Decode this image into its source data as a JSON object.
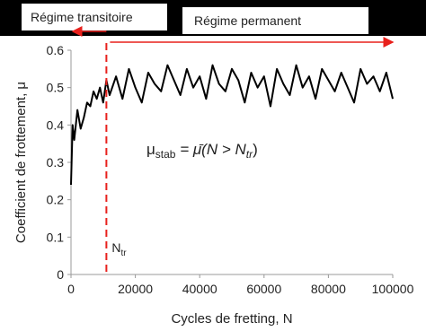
{
  "chart_data": {
    "type": "line",
    "x_label": "Cycles de fretting, N",
    "y_label": "Coefficient de frottement, μ",
    "regime_left": "Régime transitoire",
    "regime_right": "Régime permanent",
    "ntr_x": 11000,
    "ntr_label": {
      "main": "N",
      "sub": "tr"
    },
    "equation": {
      "mu": "μ",
      "mu_sub": "stab",
      "rest": " = μ̄(N > N",
      "rest_sub": "tr",
      "close": ")"
    },
    "x": [
      0,
      500,
      1000,
      2000,
      3000,
      4000,
      5000,
      6000,
      7000,
      8000,
      9000,
      10000,
      11000,
      12000,
      14000,
      16000,
      18000,
      20000,
      22000,
      24000,
      26000,
      28000,
      30000,
      32000,
      34000,
      36000,
      38000,
      40000,
      42000,
      44000,
      46000,
      48000,
      50000,
      52000,
      54000,
      56000,
      58000,
      60000,
      62000,
      64000,
      66000,
      68000,
      70000,
      72000,
      74000,
      76000,
      78000,
      80000,
      82000,
      84000,
      86000,
      88000,
      90000,
      92000,
      94000,
      96000,
      98000,
      100000
    ],
    "series": [
      {
        "color": "#000000",
        "values": [
          0.24,
          0.4,
          0.36,
          0.44,
          0.39,
          0.42,
          0.46,
          0.45,
          0.49,
          0.47,
          0.5,
          0.46,
          0.52,
          0.48,
          0.53,
          0.47,
          0.55,
          0.5,
          0.46,
          0.54,
          0.51,
          0.49,
          0.56,
          0.52,
          0.48,
          0.55,
          0.5,
          0.53,
          0.47,
          0.56,
          0.51,
          0.49,
          0.55,
          0.52,
          0.46,
          0.54,
          0.5,
          0.53,
          0.45,
          0.55,
          0.51,
          0.48,
          0.56,
          0.5,
          0.53,
          0.47,
          0.55,
          0.52,
          0.49,
          0.54,
          0.5,
          0.46,
          0.55,
          0.51,
          0.53,
          0.49,
          0.54,
          0.47
        ]
      }
    ],
    "xlim": [
      0,
      100000
    ],
    "ylim": [
      0,
      0.6
    ],
    "xticks": [
      0,
      20000,
      40000,
      60000,
      80000,
      100000
    ],
    "yticks": [
      0,
      0.1,
      0.2,
      0.3,
      0.4,
      0.5,
      0.6
    ],
    "accent_color": "#e8201c"
  }
}
